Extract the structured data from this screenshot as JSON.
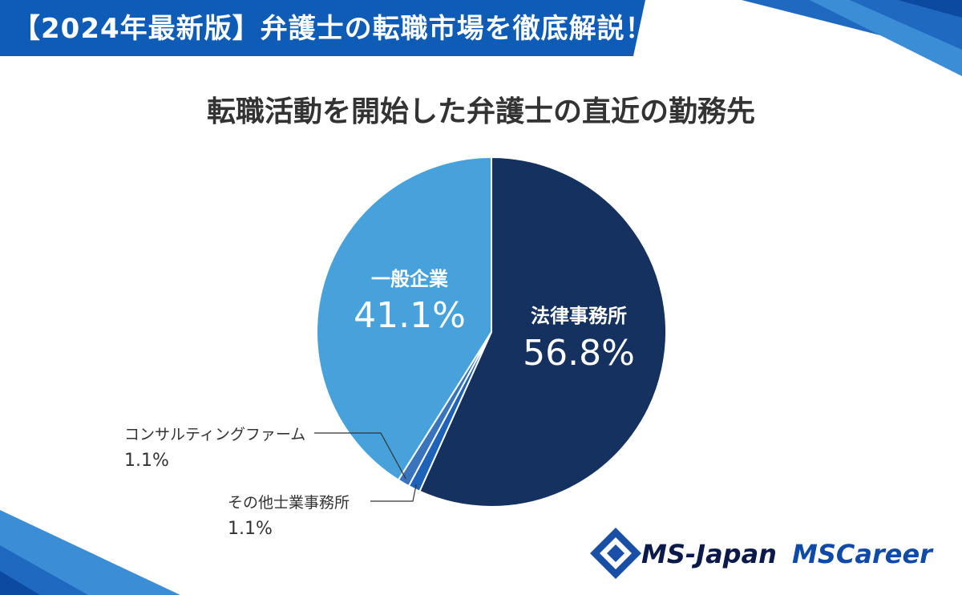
{
  "banner": {
    "title": "【2024年最新版】弁護士の転職市場を徹底解説！"
  },
  "chart_data": {
    "type": "pie",
    "title": "転職活動を開始した弁護士の直近の勤務先",
    "slices": [
      {
        "label": "法律事務所",
        "value": 56.8,
        "value_label": "56.8%",
        "color": "#143160"
      },
      {
        "label": "その他士業事務所",
        "value": 1.1,
        "value_label": "1.1%",
        "color": "#1f62ba"
      },
      {
        "label": "コンサルティングファーム",
        "value": 1.1,
        "value_label": "1.1%",
        "color": "#3a74bc"
      },
      {
        "label": "一般企業",
        "value": 41.1,
        "value_label": "41.1%",
        "color": "#47a2dc"
      }
    ]
  },
  "logos": {
    "ms_japan": "MS-Japan",
    "ms_career": "MSCareer"
  }
}
